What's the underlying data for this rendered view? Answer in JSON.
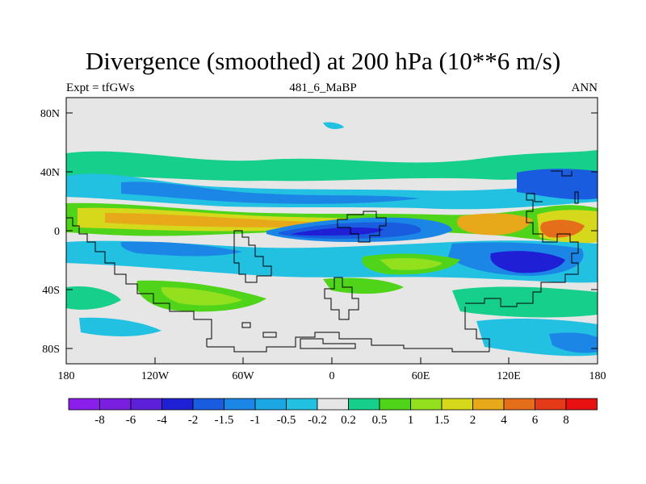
{
  "title": "Divergence (smoothed) at 200 hPa (10**6 m/s)",
  "subtitle": {
    "left": "Expt = tfGWs",
    "center": "481_6_MaBP",
    "right": "ANN"
  },
  "lat_labels": [
    "80N",
    "40N",
    "0",
    "40S",
    "80S"
  ],
  "lon_labels": [
    "180",
    "120W",
    "60W",
    "0",
    "60E",
    "120E",
    "180"
  ],
  "colorbar": {
    "labels": [
      "-8",
      "-6",
      "-4",
      "-2",
      "-1.5",
      "-1",
      "-0.5",
      "-0.2",
      "0.2",
      "0.5",
      "1",
      "1.5",
      "2",
      "4",
      "6",
      "8"
    ],
    "colors": [
      "#8a1eea",
      "#7a1ee0",
      "#5b20d8",
      "#1f1fd6",
      "#1a5ce0",
      "#1c86e6",
      "#1ba6e4",
      "#22c1e2",
      "#e6e6e6",
      "#15cf8a",
      "#4fd41a",
      "#93e01e",
      "#d6d81c",
      "#e7a81a",
      "#e46e1a",
      "#e43a1a",
      "#e81010"
    ]
  },
  "palette": {
    "background": "#e6e6e6",
    "neg_light": "#22c1e2",
    "neg_mid": "#1c86e6",
    "neg_strong": "#1a5ce0",
    "neg_max": "#1f1fd6",
    "pos_light": "#15cf8a",
    "pos_mid": "#4fd41a",
    "pos_strong": "#93e01e",
    "pos_high": "#d6d81c",
    "pos_max": "#e7a81a",
    "pos_peak": "#e46e1a"
  }
}
